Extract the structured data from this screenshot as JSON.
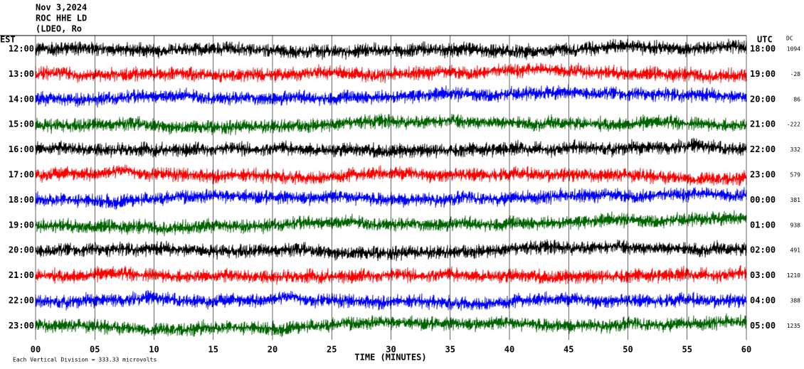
{
  "header": {
    "date": "Nov 3,2024",
    "station": "ROC HHE LD",
    "network": "(LDEO, Ro"
  },
  "chart_data": {
    "type": "helicorder",
    "left_axis_label": "EST",
    "right_axis_label": "UTC",
    "dc_label": "DC",
    "rows": [
      {
        "est": "12:00",
        "utc": "18:00",
        "dc": 1094,
        "color": "#000000"
      },
      {
        "est": "13:00",
        "utc": "19:00",
        "dc": -28,
        "color": "#ff0000"
      },
      {
        "est": "14:00",
        "utc": "20:00",
        "dc": 86,
        "color": "#0000ff"
      },
      {
        "est": "15:00",
        "utc": "21:00",
        "dc": -222,
        "color": "#006400"
      },
      {
        "est": "16:00",
        "utc": "22:00",
        "dc": 332,
        "color": "#000000"
      },
      {
        "est": "17:00",
        "utc": "23:00",
        "dc": 579,
        "color": "#ff0000"
      },
      {
        "est": "18:00",
        "utc": "00:00",
        "dc": 381,
        "color": "#0000ff"
      },
      {
        "est": "19:00",
        "utc": "01:00",
        "dc": 938,
        "color": "#006400"
      },
      {
        "est": "20:00",
        "utc": "02:00",
        "dc": 491,
        "color": "#000000"
      },
      {
        "est": "21:00",
        "utc": "03:00",
        "dc": 1210,
        "color": "#ff0000"
      },
      {
        "est": "22:00",
        "utc": "04:00",
        "dc": 388,
        "color": "#0000ff"
      },
      {
        "est": "23:00",
        "utc": "05:00",
        "dc": 1235,
        "color": "#006400"
      }
    ],
    "x_label": "TIME (MINUTES)",
    "xlim": [
      0,
      60
    ],
    "xticks": [
      {
        "value": 0,
        "label": "00"
      },
      {
        "value": 5,
        "label": "05"
      },
      10,
      15,
      20,
      25,
      30,
      35,
      40,
      45,
      50,
      55,
      60
    ],
    "footer": "Each Vertical Division = 333.33 microvolts"
  }
}
